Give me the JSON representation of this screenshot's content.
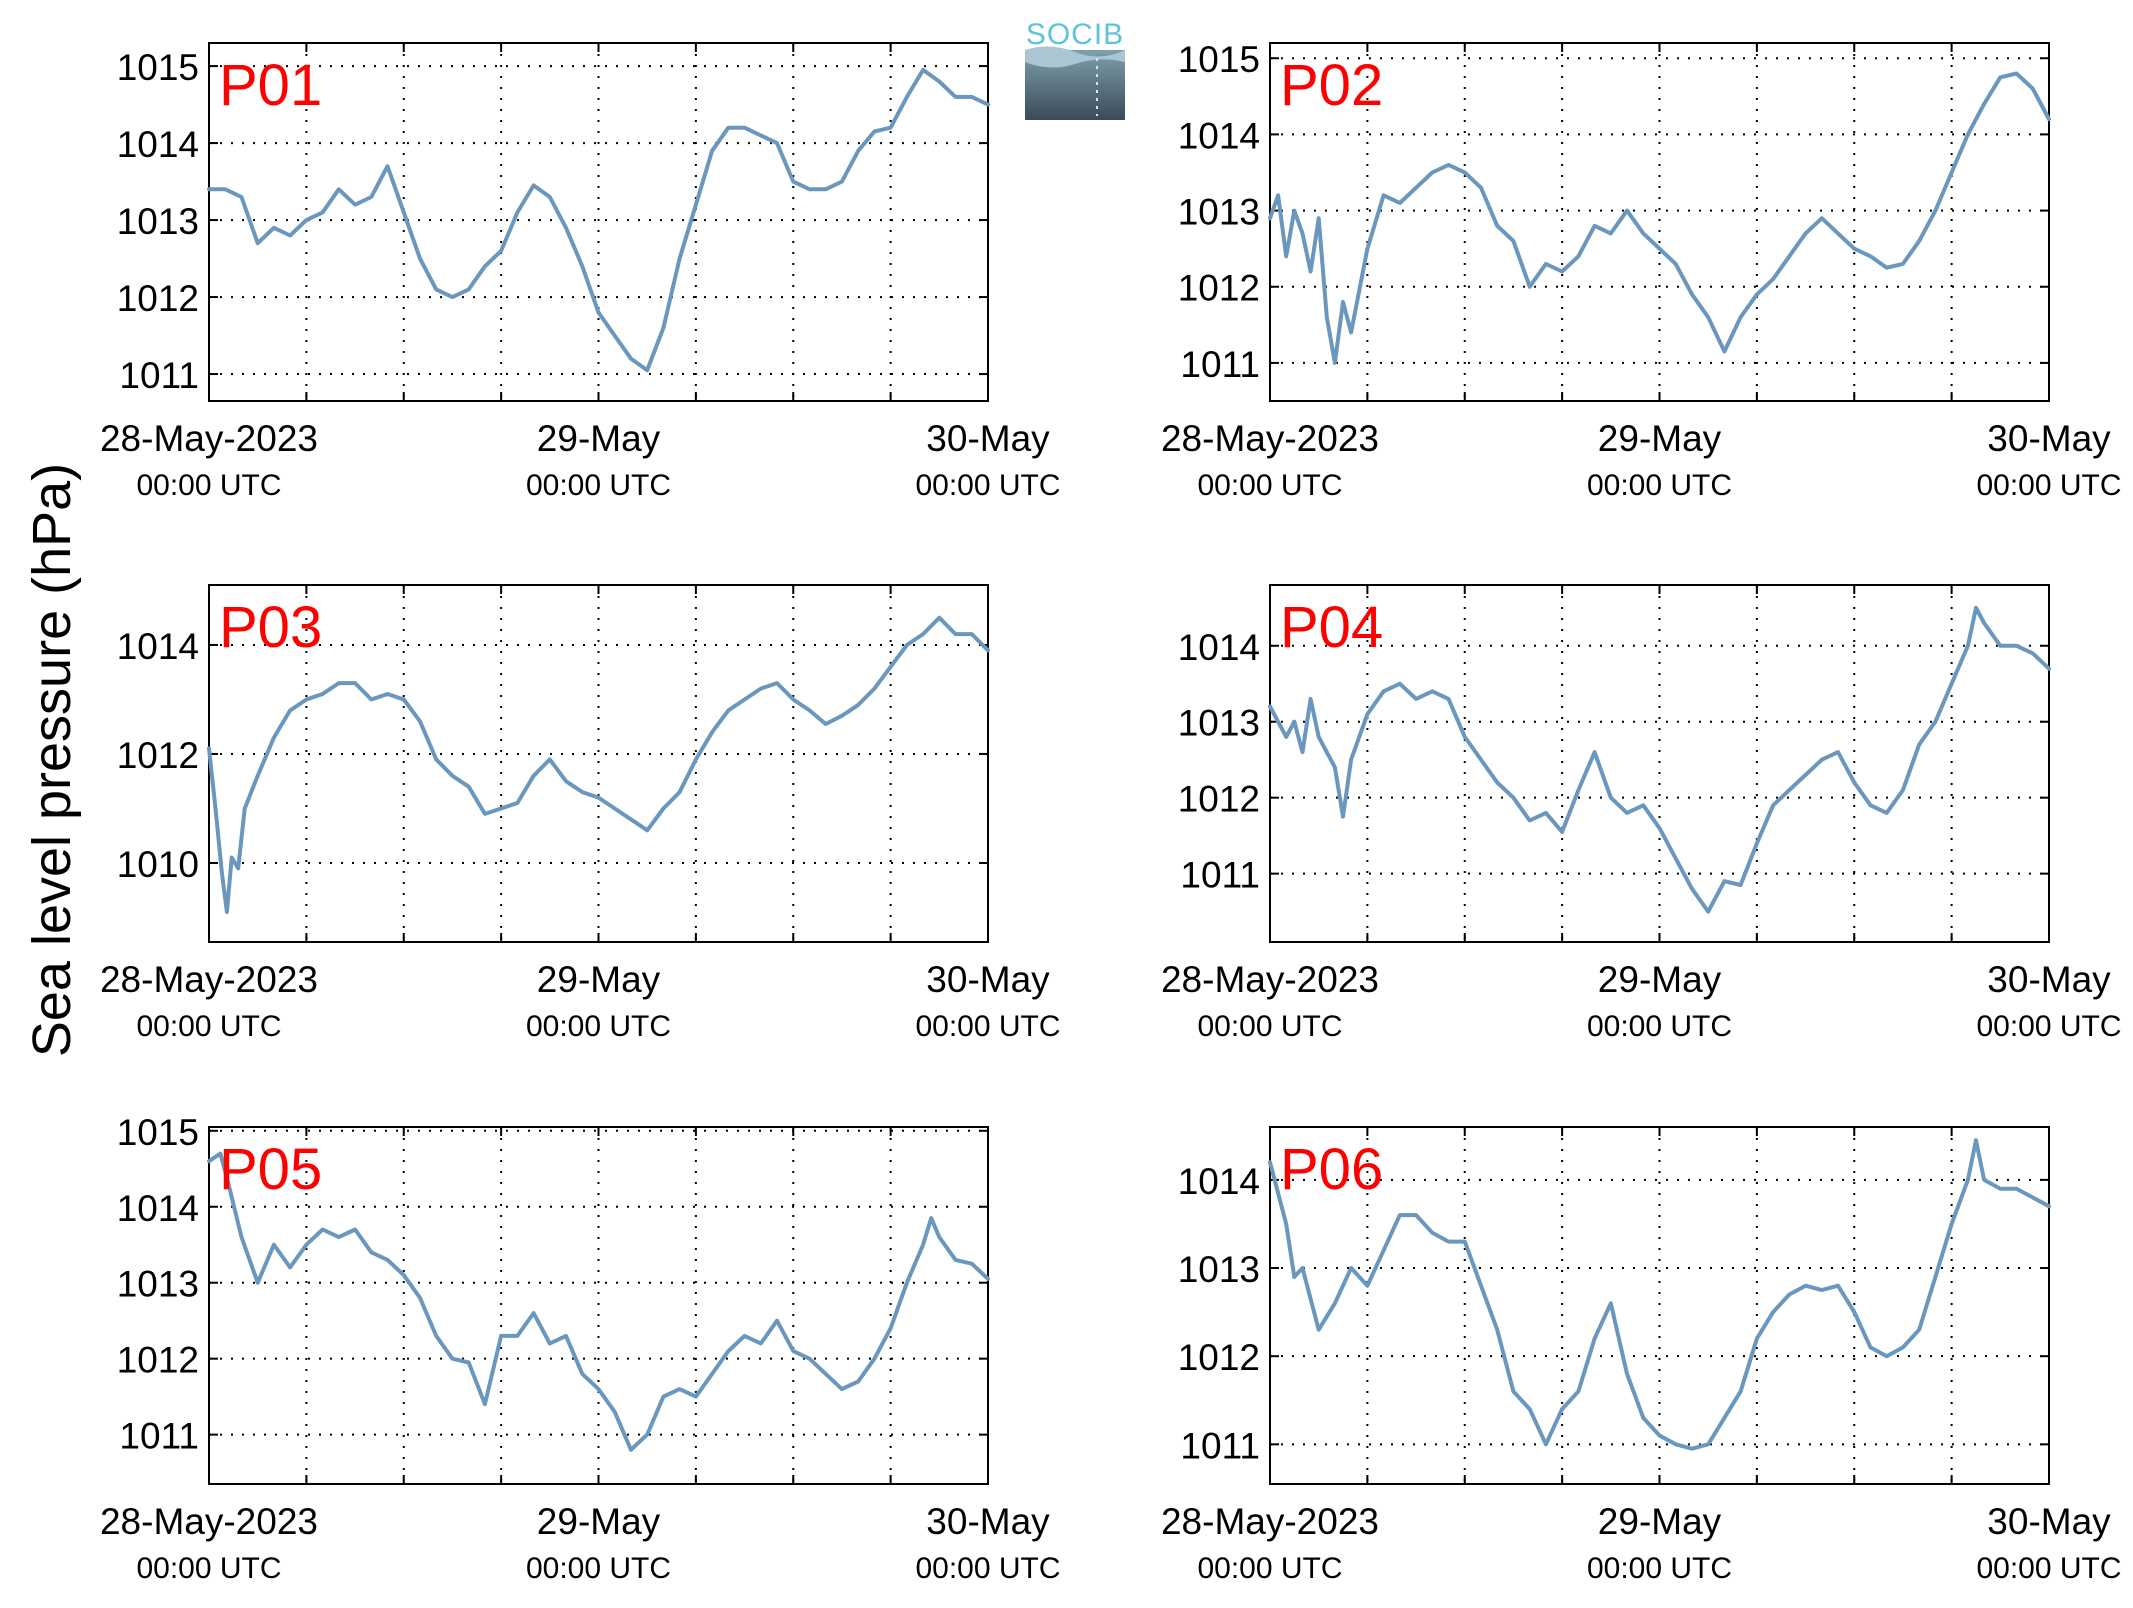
{
  "figure": {
    "ylabel": "Sea level pressure (hPa)",
    "logo_text": "SOCIB",
    "colors": {
      "line": "#6a97bd",
      "station_label": "#ff0000",
      "axes": "#000000",
      "grid": "#000000",
      "logo_text": "#5fc3d9",
      "logo_top": "#4ea8c0",
      "logo_bottom": "#3a4a58"
    }
  },
  "chart_data": [
    {
      "type": "line",
      "station": "P01",
      "x_ticks": [
        {
          "l1": "28-May-2023",
          "l2": "00:00 UTC"
        },
        {
          "l1": "29-May",
          "l2": "00:00 UTC"
        },
        {
          "l1": "30-May",
          "l2": "00:00 UTC"
        }
      ],
      "xlim_hours": [
        0,
        48
      ],
      "ylim": [
        1010.65,
        1015.3
      ],
      "yticks": [
        1011,
        1012,
        1013,
        1014,
        1015
      ],
      "grid": true,
      "points": [
        [
          0,
          1013.4
        ],
        [
          1,
          1013.4
        ],
        [
          2,
          1013.3
        ],
        [
          3,
          1012.7
        ],
        [
          4,
          1012.9
        ],
        [
          5,
          1012.8
        ],
        [
          6,
          1013.0
        ],
        [
          7,
          1013.1
        ],
        [
          8,
          1013.4
        ],
        [
          9,
          1013.2
        ],
        [
          10,
          1013.3
        ],
        [
          11,
          1013.7
        ],
        [
          12,
          1013.1
        ],
        [
          13,
          1012.5
        ],
        [
          14,
          1012.1
        ],
        [
          15,
          1012.0
        ],
        [
          16,
          1012.1
        ],
        [
          17,
          1012.4
        ],
        [
          18,
          1012.6
        ],
        [
          19,
          1013.1
        ],
        [
          20,
          1013.45
        ],
        [
          21,
          1013.3
        ],
        [
          22,
          1012.9
        ],
        [
          23,
          1012.4
        ],
        [
          24,
          1011.8
        ],
        [
          25,
          1011.5
        ],
        [
          26,
          1011.2
        ],
        [
          27,
          1011.05
        ],
        [
          28,
          1011.6
        ],
        [
          29,
          1012.5
        ],
        [
          30,
          1013.2
        ],
        [
          31,
          1013.9
        ],
        [
          32,
          1014.2
        ],
        [
          33,
          1014.2
        ],
        [
          34,
          1014.1
        ],
        [
          35,
          1014.0
        ],
        [
          36,
          1013.5
        ],
        [
          37,
          1013.4
        ],
        [
          38,
          1013.4
        ],
        [
          39,
          1013.5
        ],
        [
          40,
          1013.9
        ],
        [
          41,
          1014.15
        ],
        [
          42,
          1014.2
        ],
        [
          43,
          1014.6
        ],
        [
          44,
          1014.95
        ],
        [
          45,
          1014.8
        ],
        [
          46,
          1014.6
        ],
        [
          47,
          1014.6
        ],
        [
          48,
          1014.5
        ]
      ]
    },
    {
      "type": "line",
      "station": "P02",
      "x_ticks": [
        {
          "l1": "28-May-2023",
          "l2": "00:00 UTC"
        },
        {
          "l1": "29-May",
          "l2": "00:00 UTC"
        },
        {
          "l1": "30-May",
          "l2": "00:00 UTC"
        }
      ],
      "xlim_hours": [
        0,
        48
      ],
      "ylim": [
        1010.5,
        1015.2
      ],
      "yticks": [
        1011,
        1012,
        1013,
        1014,
        1015
      ],
      "grid": true,
      "points": [
        [
          0,
          1012.9
        ],
        [
          0.5,
          1013.2
        ],
        [
          1,
          1012.4
        ],
        [
          1.5,
          1013.0
        ],
        [
          2,
          1012.7
        ],
        [
          2.5,
          1012.2
        ],
        [
          3,
          1012.9
        ],
        [
          3.5,
          1011.6
        ],
        [
          4,
          1011.0
        ],
        [
          4.5,
          1011.8
        ],
        [
          5,
          1011.4
        ],
        [
          6,
          1012.5
        ],
        [
          7,
          1013.2
        ],
        [
          8,
          1013.1
        ],
        [
          9,
          1013.3
        ],
        [
          10,
          1013.5
        ],
        [
          11,
          1013.6
        ],
        [
          12,
          1013.5
        ],
        [
          13,
          1013.3
        ],
        [
          14,
          1012.8
        ],
        [
          15,
          1012.6
        ],
        [
          16,
          1012.0
        ],
        [
          17,
          1012.3
        ],
        [
          18,
          1012.2
        ],
        [
          19,
          1012.4
        ],
        [
          20,
          1012.8
        ],
        [
          21,
          1012.7
        ],
        [
          22,
          1013.0
        ],
        [
          23,
          1012.7
        ],
        [
          24,
          1012.5
        ],
        [
          25,
          1012.3
        ],
        [
          26,
          1011.9
        ],
        [
          27,
          1011.6
        ],
        [
          28,
          1011.15
        ],
        [
          29,
          1011.6
        ],
        [
          30,
          1011.9
        ],
        [
          31,
          1012.1
        ],
        [
          32,
          1012.4
        ],
        [
          33,
          1012.7
        ],
        [
          34,
          1012.9
        ],
        [
          35,
          1012.7
        ],
        [
          36,
          1012.5
        ],
        [
          37,
          1012.4
        ],
        [
          38,
          1012.25
        ],
        [
          39,
          1012.3
        ],
        [
          40,
          1012.6
        ],
        [
          41,
          1013.0
        ],
        [
          42,
          1013.5
        ],
        [
          43,
          1014.0
        ],
        [
          44,
          1014.4
        ],
        [
          45,
          1014.75
        ],
        [
          46,
          1014.8
        ],
        [
          47,
          1014.6
        ],
        [
          48,
          1014.2
        ]
      ]
    },
    {
      "type": "line",
      "station": "P03",
      "x_ticks": [
        {
          "l1": "28-May-2023",
          "l2": "00:00 UTC"
        },
        {
          "l1": "29-May",
          "l2": "00:00 UTC"
        },
        {
          "l1": "30-May",
          "l2": "00:00 UTC"
        }
      ],
      "xlim_hours": [
        0,
        48
      ],
      "ylim": [
        1008.55,
        1015.1
      ],
      "yticks": [
        1010,
        1012,
        1014
      ],
      "grid": true,
      "points": [
        [
          0,
          1012.1
        ],
        [
          0.4,
          1011.0
        ],
        [
          0.8,
          1009.8
        ],
        [
          1.1,
          1009.1
        ],
        [
          1.4,
          1010.1
        ],
        [
          1.8,
          1009.9
        ],
        [
          2.2,
          1011.0
        ],
        [
          3,
          1011.6
        ],
        [
          4,
          1012.3
        ],
        [
          5,
          1012.8
        ],
        [
          6,
          1013.0
        ],
        [
          7,
          1013.1
        ],
        [
          8,
          1013.3
        ],
        [
          9,
          1013.3
        ],
        [
          10,
          1013.0
        ],
        [
          11,
          1013.1
        ],
        [
          12,
          1013.0
        ],
        [
          13,
          1012.6
        ],
        [
          14,
          1011.9
        ],
        [
          15,
          1011.6
        ],
        [
          16,
          1011.4
        ],
        [
          17,
          1010.9
        ],
        [
          18,
          1011.0
        ],
        [
          19,
          1011.1
        ],
        [
          20,
          1011.6
        ],
        [
          21,
          1011.9
        ],
        [
          22,
          1011.5
        ],
        [
          23,
          1011.3
        ],
        [
          24,
          1011.2
        ],
        [
          25,
          1011.0
        ],
        [
          26,
          1010.8
        ],
        [
          27,
          1010.6
        ],
        [
          28,
          1011.0
        ],
        [
          29,
          1011.3
        ],
        [
          30,
          1011.9
        ],
        [
          31,
          1012.4
        ],
        [
          32,
          1012.8
        ],
        [
          33,
          1013.0
        ],
        [
          34,
          1013.2
        ],
        [
          35,
          1013.3
        ],
        [
          36,
          1013.0
        ],
        [
          37,
          1012.8
        ],
        [
          38,
          1012.55
        ],
        [
          39,
          1012.7
        ],
        [
          40,
          1012.9
        ],
        [
          41,
          1013.2
        ],
        [
          42,
          1013.6
        ],
        [
          43,
          1014.0
        ],
        [
          44,
          1014.2
        ],
        [
          45,
          1014.5
        ],
        [
          46,
          1014.2
        ],
        [
          47,
          1014.2
        ],
        [
          48,
          1013.9
        ]
      ]
    },
    {
      "type": "line",
      "station": "P04",
      "x_ticks": [
        {
          "l1": "28-May-2023",
          "l2": "00:00 UTC"
        },
        {
          "l1": "29-May",
          "l2": "00:00 UTC"
        },
        {
          "l1": "30-May",
          "l2": "00:00 UTC"
        }
      ],
      "xlim_hours": [
        0,
        48
      ],
      "ylim": [
        1010.1,
        1014.8
      ],
      "yticks": [
        1011,
        1012,
        1013,
        1014
      ],
      "grid": true,
      "points": [
        [
          0,
          1013.2
        ],
        [
          1,
          1012.8
        ],
        [
          1.5,
          1013.0
        ],
        [
          2,
          1012.6
        ],
        [
          2.5,
          1013.3
        ],
        [
          3,
          1012.8
        ],
        [
          4,
          1012.4
        ],
        [
          4.5,
          1011.75
        ],
        [
          5,
          1012.5
        ],
        [
          6,
          1013.1
        ],
        [
          7,
          1013.4
        ],
        [
          8,
          1013.5
        ],
        [
          9,
          1013.3
        ],
        [
          10,
          1013.4
        ],
        [
          11,
          1013.3
        ],
        [
          12,
          1012.8
        ],
        [
          13,
          1012.5
        ],
        [
          14,
          1012.2
        ],
        [
          15,
          1012.0
        ],
        [
          16,
          1011.7
        ],
        [
          17,
          1011.8
        ],
        [
          18,
          1011.55
        ],
        [
          19,
          1012.1
        ],
        [
          20,
          1012.6
        ],
        [
          21,
          1012.0
        ],
        [
          22,
          1011.8
        ],
        [
          23,
          1011.9
        ],
        [
          24,
          1011.6
        ],
        [
          25,
          1011.2
        ],
        [
          26,
          1010.8
        ],
        [
          27,
          1010.5
        ],
        [
          28,
          1010.9
        ],
        [
          29,
          1010.85
        ],
        [
          30,
          1011.4
        ],
        [
          31,
          1011.9
        ],
        [
          32,
          1012.1
        ],
        [
          33,
          1012.3
        ],
        [
          34,
          1012.5
        ],
        [
          35,
          1012.6
        ],
        [
          36,
          1012.2
        ],
        [
          37,
          1011.9
        ],
        [
          38,
          1011.8
        ],
        [
          39,
          1012.1
        ],
        [
          40,
          1012.7
        ],
        [
          41,
          1013.0
        ],
        [
          42,
          1013.5
        ],
        [
          43,
          1014.0
        ],
        [
          43.5,
          1014.5
        ],
        [
          44,
          1014.3
        ],
        [
          45,
          1014.0
        ],
        [
          46,
          1014.0
        ],
        [
          47,
          1013.9
        ],
        [
          48,
          1013.7
        ]
      ]
    },
    {
      "type": "line",
      "station": "P05",
      "x_ticks": [
        {
          "l1": "28-May-2023",
          "l2": "00:00 UTC"
        },
        {
          "l1": "29-May",
          "l2": "00:00 UTC"
        },
        {
          "l1": "30-May",
          "l2": "00:00 UTC"
        }
      ],
      "xlim_hours": [
        0,
        48
      ],
      "ylim": [
        1010.35,
        1015.05
      ],
      "yticks": [
        1011,
        1012,
        1013,
        1014,
        1015
      ],
      "grid": true,
      "points": [
        [
          0,
          1014.6
        ],
        [
          0.7,
          1014.7
        ],
        [
          1.2,
          1014.3
        ],
        [
          2,
          1013.6
        ],
        [
          3,
          1013.0
        ],
        [
          4,
          1013.5
        ],
        [
          5,
          1013.2
        ],
        [
          6,
          1013.5
        ],
        [
          7,
          1013.7
        ],
        [
          8,
          1013.6
        ],
        [
          9,
          1013.7
        ],
        [
          10,
          1013.4
        ],
        [
          11,
          1013.3
        ],
        [
          12,
          1013.1
        ],
        [
          13,
          1012.8
        ],
        [
          14,
          1012.3
        ],
        [
          15,
          1012.0
        ],
        [
          16,
          1011.95
        ],
        [
          17,
          1011.4
        ],
        [
          18,
          1012.3
        ],
        [
          19,
          1012.3
        ],
        [
          20,
          1012.6
        ],
        [
          21,
          1012.2
        ],
        [
          22,
          1012.3
        ],
        [
          23,
          1011.8
        ],
        [
          24,
          1011.6
        ],
        [
          25,
          1011.3
        ],
        [
          26,
          1010.8
        ],
        [
          27,
          1011.0
        ],
        [
          28,
          1011.5
        ],
        [
          29,
          1011.6
        ],
        [
          30,
          1011.5
        ],
        [
          31,
          1011.8
        ],
        [
          32,
          1012.1
        ],
        [
          33,
          1012.3
        ],
        [
          34,
          1012.2
        ],
        [
          35,
          1012.5
        ],
        [
          36,
          1012.1
        ],
        [
          37,
          1012.0
        ],
        [
          38,
          1011.8
        ],
        [
          39,
          1011.6
        ],
        [
          40,
          1011.7
        ],
        [
          41,
          1012.0
        ],
        [
          42,
          1012.4
        ],
        [
          43,
          1013.0
        ],
        [
          44,
          1013.5
        ],
        [
          44.5,
          1013.85
        ],
        [
          45,
          1013.6
        ],
        [
          46,
          1013.3
        ],
        [
          47,
          1013.25
        ],
        [
          48,
          1013.05
        ]
      ]
    },
    {
      "type": "line",
      "station": "P06",
      "x_ticks": [
        {
          "l1": "28-May-2023",
          "l2": "00:00 UTC"
        },
        {
          "l1": "29-May",
          "l2": "00:00 UTC"
        },
        {
          "l1": "30-May",
          "l2": "00:00 UTC"
        }
      ],
      "xlim_hours": [
        0,
        48
      ],
      "ylim": [
        1010.55,
        1014.6
      ],
      "yticks": [
        1011,
        1012,
        1013,
        1014
      ],
      "grid": true,
      "points": [
        [
          0,
          1014.2
        ],
        [
          1,
          1013.5
        ],
        [
          1.5,
          1012.9
        ],
        [
          2,
          1013.0
        ],
        [
          3,
          1012.3
        ],
        [
          4,
          1012.6
        ],
        [
          5,
          1013.0
        ],
        [
          6,
          1012.8
        ],
        [
          7,
          1013.2
        ],
        [
          8,
          1013.6
        ],
        [
          9,
          1013.6
        ],
        [
          10,
          1013.4
        ],
        [
          11,
          1013.3
        ],
        [
          12,
          1013.3
        ],
        [
          13,
          1012.8
        ],
        [
          14,
          1012.3
        ],
        [
          15,
          1011.6
        ],
        [
          16,
          1011.4
        ],
        [
          17,
          1011.0
        ],
        [
          18,
          1011.4
        ],
        [
          19,
          1011.6
        ],
        [
          20,
          1012.2
        ],
        [
          21,
          1012.6
        ],
        [
          22,
          1011.8
        ],
        [
          23,
          1011.3
        ],
        [
          24,
          1011.1
        ],
        [
          25,
          1011.0
        ],
        [
          26,
          1010.95
        ],
        [
          27,
          1011.0
        ],
        [
          28,
          1011.3
        ],
        [
          29,
          1011.6
        ],
        [
          30,
          1012.2
        ],
        [
          31,
          1012.5
        ],
        [
          32,
          1012.7
        ],
        [
          33,
          1012.8
        ],
        [
          34,
          1012.75
        ],
        [
          35,
          1012.8
        ],
        [
          36,
          1012.5
        ],
        [
          37,
          1012.1
        ],
        [
          38,
          1012.0
        ],
        [
          39,
          1012.1
        ],
        [
          40,
          1012.3
        ],
        [
          41,
          1012.9
        ],
        [
          42,
          1013.5
        ],
        [
          43,
          1014.0
        ],
        [
          43.5,
          1014.45
        ],
        [
          44,
          1014.0
        ],
        [
          45,
          1013.9
        ],
        [
          46,
          1013.9
        ],
        [
          47,
          1013.8
        ],
        [
          48,
          1013.7
        ]
      ]
    }
  ]
}
